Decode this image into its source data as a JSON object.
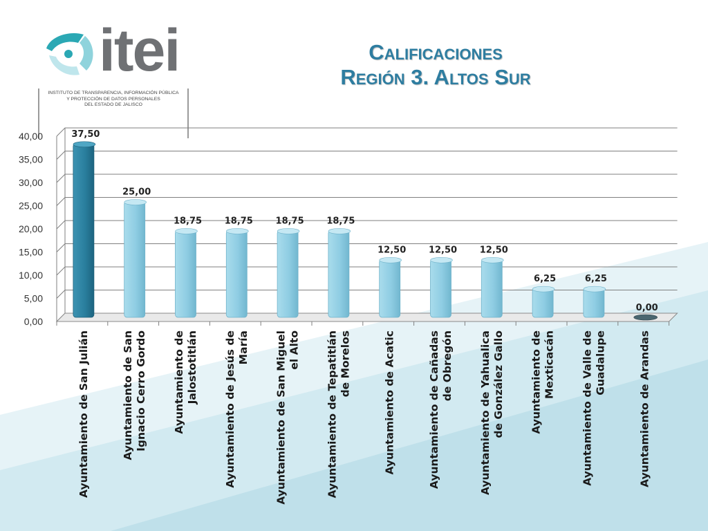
{
  "header": {
    "logo_text": "itei",
    "logo_subtitle_lines": [
      "INSTITUTO DE TRANSPARENCIA, INFORMACIÓN PÚBLICA",
      "Y PROTECCIÓN DE DATOS PERSONALES",
      "DEL ESTADO DE JALISCO"
    ],
    "title_line1": "Calificaciones",
    "title_line2": "Región 3. Altos Sur"
  },
  "colors": {
    "title": "#2e7da0",
    "bar_highlight": "#2a7f9e",
    "bar_default": "#8fcde3",
    "background_band": "#cde8f0"
  },
  "chart_data": {
    "type": "bar",
    "categories": [
      "Ayuntamiento de San Julián",
      "Ayuntamiento de San Ignacio Cerro Gordo",
      "Ayuntamiento de Jalostotitlán",
      "Ayuntamiento de Jesús de María",
      "Ayuntamiento de San Miguel el Alto",
      "Ayuntamiento de Tepatitlán de Morelos",
      "Ayuntamiento de Acatic",
      "Ayuntamiento de Cañadas de Obregón",
      "Ayuntamiento de Yahualica de González Gallo",
      "Ayuntamiento de Mexticacán",
      "Ayuntamiento de Valle de Guadalupe",
      "Ayuntamiento de Arandas"
    ],
    "category_label_lines": [
      [
        "Ayuntamiento de San Julián"
      ],
      [
        "Ayuntamiento de San",
        "Ignacio Cerro Gordo"
      ],
      [
        "Ayuntamiento de",
        "Jalostotitlán"
      ],
      [
        "Ayuntamiento de Jesús de",
        "María"
      ],
      [
        "Ayuntamiento de San Miguel",
        "el Alto"
      ],
      [
        "Ayuntamiento de Tepatitlán",
        "de Morelos"
      ],
      [
        "Ayuntamiento de Acatic"
      ],
      [
        "Ayuntamiento de Cañadas",
        "de Obregón"
      ],
      [
        "Ayuntamiento de Yahualica",
        "de González Gallo"
      ],
      [
        "Ayuntamiento de",
        "Mexticacán"
      ],
      [
        "Ayuntamiento de Valle de",
        "Guadalupe"
      ],
      [
        "Ayuntamiento de Arandas"
      ]
    ],
    "values": [
      37.5,
      25.0,
      18.75,
      18.75,
      18.75,
      18.75,
      12.5,
      12.5,
      12.5,
      6.25,
      6.25,
      0.0
    ],
    "value_labels": [
      "37,50",
      "25,00",
      "18,75",
      "18,75",
      "18,75",
      "18,75",
      "12,50",
      "12,50",
      "12,50",
      "6,25",
      "6,25",
      "0,00"
    ],
    "yticks": [
      "0,00",
      "5,00",
      "10,00",
      "15,00",
      "20,00",
      "25,00",
      "30,00",
      "35,00",
      "40,00"
    ],
    "ylim": [
      0,
      40
    ],
    "highlight_index": 0,
    "grid": true,
    "legend": "none",
    "title": "Calificaciones Región 3. Altos Sur",
    "xlabel": "",
    "ylabel": ""
  }
}
